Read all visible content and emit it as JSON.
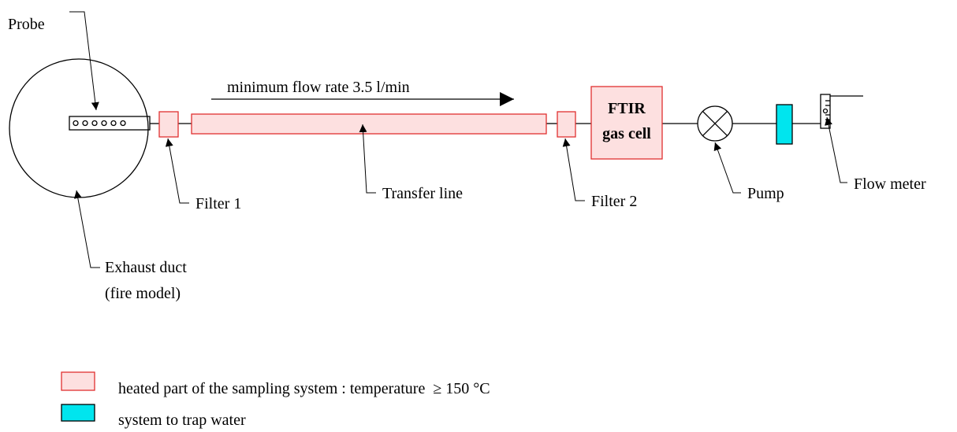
{
  "labels": {
    "probe": "Probe",
    "exhaust_duct": [
      "Exhaust duct",
      "(fire model)"
    ],
    "filter_1": "Filter 1",
    "transfer_line": "Transfer line",
    "filter_2": "Filter 2",
    "ftir": [
      "FTIR",
      "gas cell"
    ],
    "pump": "Pump",
    "flow_meter": "Flow meter",
    "flow_rate": "minimum flow rate 3.5 l/min"
  },
  "legend": [
    {
      "label": "heated part of the sampling system : temperature  ≥ 150 °C"
    },
    {
      "label": "system to trap water"
    }
  ]
}
